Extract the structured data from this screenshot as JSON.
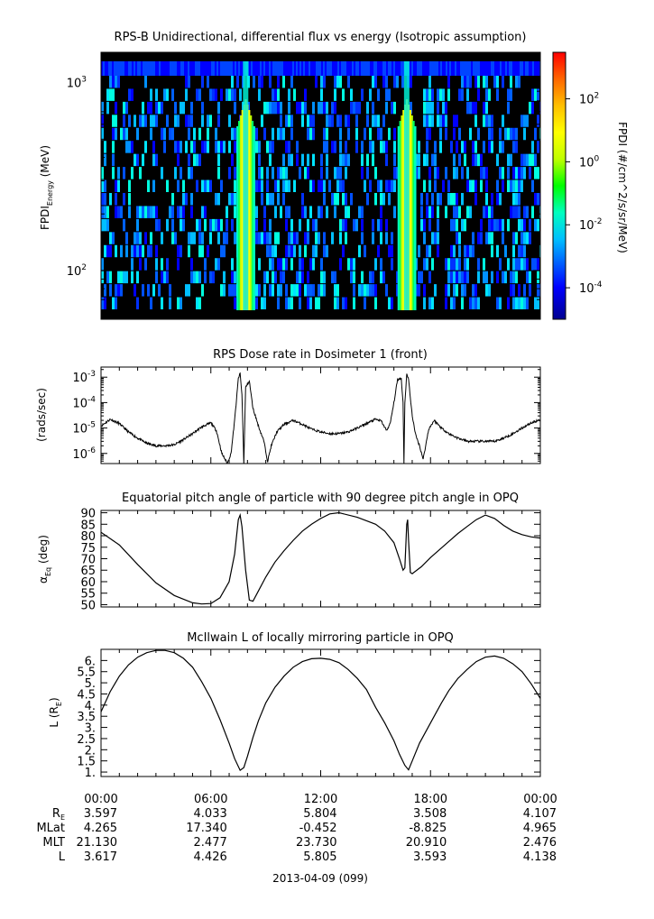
{
  "chart_data": [
    {
      "type": "heatmap",
      "title": "RPS-B  Unidirectional, differential flux vs energy (Isotropic assumption)",
      "ylabel": "FPDI",
      "ylabel_sub": "Energy",
      "ylabel_unit": "(MeV)",
      "y_scale": "log",
      "ylim": [
        55,
        1450
      ],
      "yticks": [
        {
          "value": 100,
          "base": "10",
          "exp": "2"
        },
        {
          "value": 1000,
          "base": "10",
          "exp": "3"
        }
      ],
      "xlim_hours": [
        0,
        24
      ],
      "colorbar": {
        "label": "FPDI (#/cm^2/s/sr/MeV)",
        "scale": "log",
        "range": [
          1e-05,
          3000
        ],
        "ticks": [
          {
            "value": 0.0001,
            "base": "10",
            "exp": "-4"
          },
          {
            "value": 0.01,
            "base": "10",
            "exp": "-2"
          },
          {
            "value": 1,
            "base": "10",
            "exp": "0"
          },
          {
            "value": 100,
            "base": "10",
            "exp": "2"
          }
        ],
        "colors": [
          "#00008f",
          "#0000ff",
          "#00bfff",
          "#00ffbf",
          "#00ff00",
          "#bfff00",
          "#ffff00",
          "#ffbf00",
          "#ff6600",
          "#ff0000"
        ]
      },
      "background_color": "#000000",
      "enhancement_bands_hours": [
        [
          7.4,
          8.4
        ],
        [
          16.2,
          17.2
        ]
      ]
    },
    {
      "type": "line",
      "title": "RPS  Dose rate in Dosimeter 1 (front)",
      "ylabel": "(rads/sec)",
      "y_scale": "log",
      "ylim": [
        4e-07,
        0.0025
      ],
      "yticks": [
        {
          "value": 1e-06,
          "base": "10",
          "exp": "-6"
        },
        {
          "value": 1e-05,
          "base": "10",
          "exp": "-5"
        },
        {
          "value": 0.0001,
          "base": "10",
          "exp": "-4"
        },
        {
          "value": 0.001,
          "base": "10",
          "exp": "-3"
        }
      ],
      "x_hours": [
        0,
        0.5,
        1,
        1.5,
        2,
        2.5,
        3,
        3.5,
        4,
        4.5,
        5,
        5.5,
        6,
        6.3,
        6.6,
        6.9,
        7.1,
        7.3,
        7.5,
        7.6,
        7.7,
        7.8,
        7.9,
        8.1,
        8.3,
        8.6,
        8.9,
        9.1,
        9.3,
        9.6,
        10,
        10.5,
        11,
        11.5,
        12,
        12.5,
        13,
        13.5,
        14,
        14.5,
        15,
        15.3,
        15.6,
        15.8,
        16,
        16.2,
        16.4,
        16.5,
        16.55,
        16.6,
        16.7,
        16.8,
        16.9,
        17,
        17.2,
        17.4,
        17.6,
        17.9,
        18.2,
        18.6,
        19,
        19.5,
        20,
        20.5,
        21,
        21.5,
        22,
        22.5,
        23,
        23.5,
        24
      ],
      "values": [
        1.2e-05,
        2.2e-05,
        1.5e-05,
        7e-06,
        4e-06,
        2.5e-06,
        2e-06,
        2e-06,
        2.2e-06,
        3.5e-06,
        6e-06,
        1.1e-05,
        1.6e-05,
        8e-06,
        1e-06,
        4e-07,
        1e-06,
        2e-05,
        0.0009,
        0.0014,
        0.0002,
        4e-07,
        0.0004,
        0.0007,
        6e-05,
        1.2e-05,
        3e-06,
        5e-07,
        2e-06,
        7e-06,
        1.4e-05,
        2e-05,
        1.4e-05,
        9e-06,
        7e-06,
        6e-06,
        6e-06,
        7e-06,
        1e-05,
        1.5e-05,
        2.2e-05,
        1.9e-05,
        8e-06,
        1.5e-05,
        0.0001,
        0.0008,
        0.0009,
        0.0001,
        4e-07,
        0.0001,
        0.0013,
        0.0009,
        0.00015,
        3e-05,
        5e-06,
        2e-06,
        6e-07,
        9e-06,
        2e-05,
        1e-05,
        6e-06,
        4e-06,
        3e-06,
        3e-06,
        3e-06,
        3e-06,
        4e-06,
        6e-06,
        1e-05,
        1.6e-05,
        2.1e-05
      ]
    },
    {
      "type": "line",
      "title": "Equatorial pitch angle of particle with 90 degree pitch angle in OPQ",
      "ylabel": "α",
      "ylabel_sub": "Eq",
      "ylabel_unit": "(deg)",
      "ylim": [
        49,
        91
      ],
      "yticks": [
        50,
        55,
        60,
        65,
        70,
        75,
        80,
        85,
        90
      ],
      "x_hours": [
        0,
        1,
        2,
        3,
        4,
        5,
        5.5,
        6,
        6.5,
        7,
        7.3,
        7.5,
        7.6,
        7.7,
        7.9,
        8.1,
        8.3,
        8.6,
        9,
        9.5,
        10,
        10.5,
        11,
        11.5,
        12,
        12.5,
        13,
        14,
        15,
        15.5,
        16,
        16.3,
        16.5,
        16.6,
        16.7,
        16.75,
        16.8,
        16.9,
        17,
        17.5,
        18,
        18.5,
        19,
        19.5,
        20,
        20.5,
        21,
        21.5,
        22,
        22.5,
        23,
        23.5,
        24
      ],
      "values": [
        81.5,
        76,
        67.5,
        59.5,
        54,
        50.8,
        50.3,
        50.5,
        53,
        60,
        72,
        87,
        89,
        84,
        65,
        52,
        51.5,
        56,
        62,
        68.5,
        73.5,
        78,
        82,
        85,
        87.5,
        89.5,
        90,
        88,
        85,
        82,
        77,
        70,
        65,
        66,
        85,
        87,
        78,
        64,
        63.5,
        66.5,
        70.5,
        74,
        77.5,
        81,
        84,
        87,
        89,
        87.5,
        84.5,
        82,
        80.5,
        79.5,
        79
      ]
    },
    {
      "type": "line",
      "title": "McIlwain L of locally mirroring particle in OPQ",
      "ylabel": "L (R",
      "ylabel_sub": "E",
      "ylabel_unit": ")",
      "ylim": [
        0.8,
        6.5
      ],
      "yticks": [
        1,
        1.5,
        2,
        2.5,
        3,
        3.5,
        4,
        4.5,
        5,
        5.5,
        6
      ],
      "yticklabels": [
        "1.",
        "1.5",
        "2.",
        "2.5",
        "3.",
        "3.5",
        "4.",
        "4.5",
        "5.",
        "5.5",
        "6."
      ],
      "x_hours": [
        0,
        0.5,
        1,
        1.5,
        2,
        2.5,
        3,
        3.5,
        4,
        4.5,
        5,
        5.5,
        6,
        6.5,
        7,
        7.3,
        7.6,
        7.8,
        8,
        8.3,
        8.6,
        9,
        9.5,
        10,
        10.5,
        11,
        11.5,
        12,
        12.5,
        13,
        13.5,
        14,
        14.5,
        15,
        15.5,
        16,
        16.3,
        16.6,
        16.8,
        17,
        17.4,
        17.8,
        18.2,
        18.6,
        19,
        19.5,
        20,
        20.5,
        21,
        21.5,
        22,
        22.5,
        23,
        23.5,
        24
      ],
      "values": [
        3.7,
        4.6,
        5.3,
        5.8,
        6.15,
        6.35,
        6.45,
        6.45,
        6.35,
        6.1,
        5.7,
        5.05,
        4.3,
        3.35,
        2.3,
        1.6,
        1.08,
        1.2,
        1.7,
        2.55,
        3.3,
        4.1,
        4.8,
        5.3,
        5.7,
        5.95,
        6.08,
        6.1,
        6.05,
        5.9,
        5.6,
        5.2,
        4.7,
        3.9,
        3.2,
        2.4,
        1.8,
        1.3,
        1.1,
        1.5,
        2.3,
        2.9,
        3.5,
        4.1,
        4.65,
        5.2,
        5.6,
        5.95,
        6.15,
        6.2,
        6.1,
        5.85,
        5.5,
        4.95,
        4.3
      ]
    }
  ],
  "time_axis": {
    "ticks": [
      "00:00",
      "06:00",
      "12:00",
      "18:00",
      "00:00"
    ],
    "ephemeris": [
      {
        "label": "R",
        "label_sub": "E",
        "values": [
          "3.597",
          "4.033",
          "5.804",
          "3.508",
          "4.107"
        ]
      },
      {
        "label": "MLat",
        "values": [
          "4.265",
          "17.340",
          "-0.452",
          "-8.825",
          "4.965"
        ]
      },
      {
        "label": "MLT",
        "values": [
          "21.130",
          "2.477",
          "23.730",
          "20.910",
          "2.476"
        ]
      },
      {
        "label": "L",
        "values": [
          "3.617",
          "4.426",
          "5.805",
          "3.593",
          "4.138"
        ]
      }
    ],
    "date_label": "2013-04-09 (099)"
  }
}
